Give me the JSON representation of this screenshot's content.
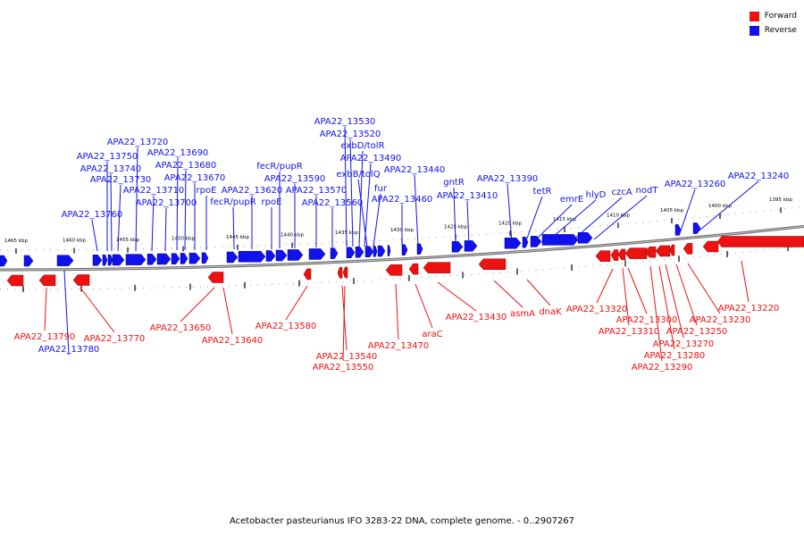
{
  "legend": {
    "forward_label": "Forward",
    "reverse_label": "Reverse",
    "forward_color": "#ee1111",
    "reverse_color": "#1111ee"
  },
  "caption": "Acetobacter pasteurianus IFO 3283-22 DNA, complete genome. - 0..2907267",
  "ticks": {
    "outer": [
      "1465 kbp",
      "1460 kbp",
      "1455 kbp",
      "1450 kbp",
      "1445 kbp",
      "1440 kbp",
      "1435 kbp",
      "1430 kbp",
      "1425 kbp",
      "1420 kbp",
      "1415 kbp",
      "1410 kbp",
      "1405 kbp",
      "1400 kbp",
      "1395 kbp"
    ]
  },
  "genes": {
    "reverse": [
      {
        "label": "APA22_13760"
      },
      {
        "label": "APA22_13750"
      },
      {
        "label": "APA22_13740"
      },
      {
        "label": "APA22_13730"
      },
      {
        "label": "APA22_13720"
      },
      {
        "label": "APA22_13710"
      },
      {
        "label": "APA22_13700"
      },
      {
        "label": "APA22_13690"
      },
      {
        "label": "APA22_13680"
      },
      {
        "label": "APA22_13670"
      },
      {
        "label": "rpoE"
      },
      {
        "label": "fecR/pupR"
      },
      {
        "label": "APA22_13620"
      },
      {
        "label": "rpoE"
      },
      {
        "label": "fecR/pupR"
      },
      {
        "label": "APA22_13590"
      },
      {
        "label": "APA22_13570"
      },
      {
        "label": "APA22_13560"
      },
      {
        "label": "APA22_13530"
      },
      {
        "label": "APA22_13520"
      },
      {
        "label": "exbD/tolR"
      },
      {
        "label": "APA22_13490"
      },
      {
        "label": "exbB/tolQ"
      },
      {
        "label": "fur"
      },
      {
        "label": "APA22_13460"
      },
      {
        "label": "APA22_13440"
      },
      {
        "label": "gntR"
      },
      {
        "label": "APA22_13410"
      },
      {
        "label": "APA22_13390"
      },
      {
        "label": "tetR"
      },
      {
        "label": "emrE"
      },
      {
        "label": "hlyD"
      },
      {
        "label": "czcA"
      },
      {
        "label": "nodT"
      },
      {
        "label": "APA22_13260"
      },
      {
        "label": "APA22_13240"
      },
      {
        "label": "APA22_13780"
      }
    ],
    "forward": [
      {
        "label": "APA22_13790"
      },
      {
        "label": "APA22_13770"
      },
      {
        "label": "APA22_13650"
      },
      {
        "label": "APA22_13640"
      },
      {
        "label": "APA22_13580"
      },
      {
        "label": "APA22_13540"
      },
      {
        "label": "APA22_13550"
      },
      {
        "label": "APA22_13470"
      },
      {
        "label": "araC"
      },
      {
        "label": "APA22_13430"
      },
      {
        "label": "asmA"
      },
      {
        "label": "dnaK"
      },
      {
        "label": "APA22_13320"
      },
      {
        "label": "APA22_13300"
      },
      {
        "label": "APA22_13310"
      },
      {
        "label": "APA22_13270"
      },
      {
        "label": "APA22_13280"
      },
      {
        "label": "APA22_13290"
      },
      {
        "label": "APA22_13250"
      },
      {
        "label": "APA22_13230"
      },
      {
        "label": "APA22_13220"
      }
    ]
  }
}
